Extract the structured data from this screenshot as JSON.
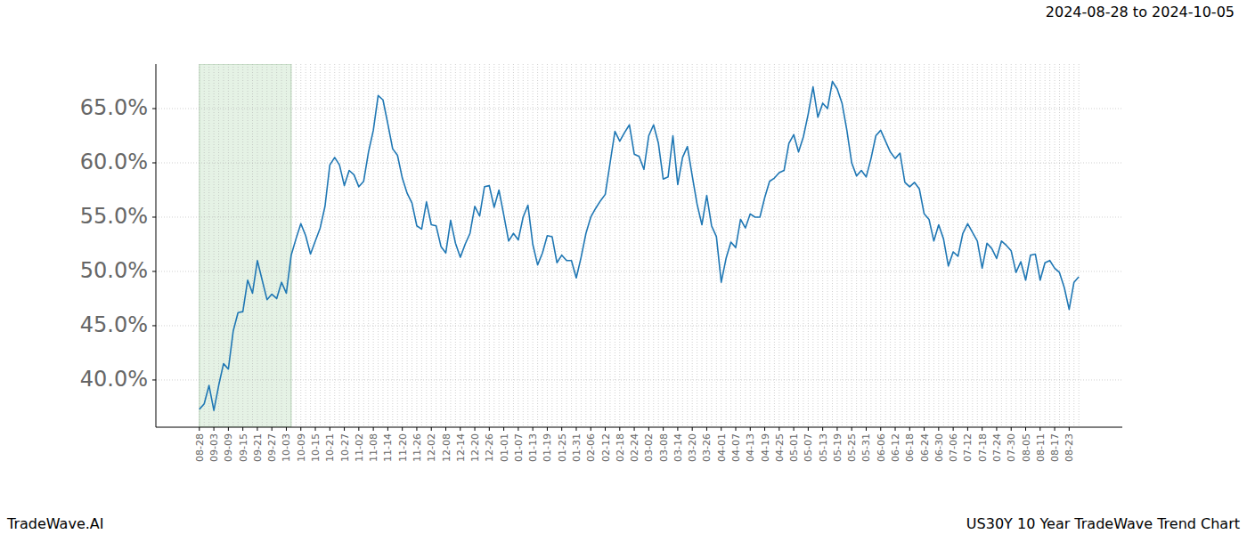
{
  "chart_data": {
    "type": "line",
    "title": "2024-08-28 to 2024-10-05",
    "footer_left": "TradeWave.AI",
    "footer_right": "US30Y 10 Year TradeWave Trend Chart",
    "color": "#1f77b4",
    "grid": true,
    "highlight": {
      "start": 0,
      "end": 19
    },
    "ylim": [
      35.65,
      69.1
    ],
    "yticks": [
      {
        "value": 40,
        "label": "40.0%"
      },
      {
        "value": 45,
        "label": "45.0%"
      },
      {
        "value": 50,
        "label": "50.0%"
      },
      {
        "value": 55,
        "label": "55.0%"
      },
      {
        "value": 60,
        "label": "60.0%"
      },
      {
        "value": 65,
        "label": "65.0%"
      }
    ],
    "categories": [
      "08-28",
      null,
      null,
      "09-03",
      null,
      null,
      "09-09",
      null,
      null,
      "09-15",
      null,
      null,
      "09-21",
      null,
      null,
      "09-27",
      null,
      null,
      "10-03",
      null,
      null,
      "10-09",
      null,
      null,
      "10-15",
      null,
      null,
      "10-21",
      null,
      null,
      "10-27",
      null,
      null,
      "11-02",
      null,
      null,
      "11-08",
      null,
      null,
      "11-14",
      null,
      null,
      "11-20",
      null,
      null,
      "11-26",
      null,
      null,
      "12-02",
      null,
      null,
      "12-08",
      null,
      null,
      "12-14",
      null,
      null,
      "12-20",
      null,
      null,
      "12-26",
      null,
      null,
      "01-01",
      null,
      null,
      "01-07",
      null,
      null,
      "01-13",
      null,
      null,
      "01-19",
      null,
      null,
      "01-25",
      null,
      null,
      "01-31",
      null,
      null,
      "02-06",
      null,
      null,
      "02-12",
      null,
      null,
      "02-18",
      null,
      null,
      "02-24",
      null,
      null,
      "03-02",
      null,
      null,
      "03-08",
      null,
      null,
      "03-14",
      null,
      null,
      "03-20",
      null,
      null,
      "03-26",
      null,
      null,
      "04-01",
      null,
      null,
      "04-07",
      null,
      null,
      "04-13",
      null,
      null,
      "04-19",
      null,
      null,
      "04-25",
      null,
      null,
      "05-01",
      null,
      null,
      "05-07",
      null,
      null,
      "05-13",
      null,
      null,
      "05-19",
      null,
      null,
      "05-25",
      null,
      null,
      "05-31",
      null,
      null,
      "06-06",
      null,
      null,
      "06-12",
      null,
      null,
      "06-18",
      null,
      null,
      "06-24",
      null,
      null,
      "06-30",
      null,
      null,
      "07-06",
      null,
      null,
      "07-12",
      null,
      null,
      "07-18",
      null,
      null,
      "07-24",
      null,
      null,
      "07-30",
      null,
      null,
      "08-05",
      null,
      null,
      "08-11",
      null,
      null,
      "08-17",
      null,
      null,
      "08-23",
      null,
      null
    ],
    "values": [
      37.3,
      37.8,
      39.5,
      37.2,
      39.5,
      41.5,
      41.0,
      44.5,
      46.2,
      46.3,
      49.2,
      48.0,
      51.0,
      49.2,
      47.4,
      47.9,
      47.5,
      49.0,
      48.0,
      51.5,
      53.0,
      54.4,
      53.3,
      51.6,
      52.8,
      54.0,
      56.0,
      59.8,
      60.5,
      59.8,
      57.9,
      59.3,
      58.9,
      57.8,
      58.3,
      61.0,
      63.0,
      66.2,
      65.8,
      63.6,
      61.3,
      60.7,
      58.6,
      57.2,
      56.3,
      54.2,
      53.9,
      56.4,
      54.3,
      54.2,
      52.3,
      51.7,
      54.7,
      52.6,
      51.3,
      52.5,
      53.5,
      56.0,
      55.1,
      57.8,
      57.9,
      55.9,
      57.5,
      55.2,
      52.8,
      53.5,
      52.9,
      55.0,
      56.1,
      52.5,
      50.6,
      51.7,
      53.3,
      53.2,
      50.8,
      51.5,
      51.0,
      51.0,
      49.4,
      51.3,
      53.5,
      55.0,
      55.8,
      56.5,
      57.1,
      60.0,
      62.9,
      62.0,
      62.8,
      63.5,
      60.8,
      60.6,
      59.4,
      62.5,
      63.5,
      61.8,
      58.5,
      58.7,
      62.5,
      58.0,
      60.5,
      61.5,
      58.8,
      56.2,
      54.3,
      57.0,
      54.2,
      53.2,
      49.0,
      51.2,
      52.7,
      52.2,
      54.8,
      54.0,
      55.3,
      55.0,
      55.0,
      56.8,
      58.3,
      58.6,
      59.1,
      59.3,
      61.8,
      62.6,
      61.0,
      62.4,
      64.5,
      67.0,
      64.2,
      65.5,
      65.0,
      67.5,
      66.8,
      65.5,
      63.0,
      60.0,
      58.8,
      59.3,
      58.7,
      60.4,
      62.5,
      63.0,
      62.0,
      61.0,
      60.4,
      60.9,
      58.2,
      57.8,
      58.2,
      57.6,
      55.3,
      54.8,
      52.8,
      54.3,
      53.0,
      50.5,
      51.8,
      51.4,
      53.5,
      54.4,
      53.6,
      52.8,
      50.3,
      52.6,
      52.1,
      51.2,
      52.8,
      52.4,
      51.9,
      49.9,
      50.9,
      49.2,
      51.5,
      51.6,
      49.2,
      50.8,
      51.0,
      50.3,
      49.9,
      48.5,
      46.5,
      49.0,
      49.5
    ]
  }
}
